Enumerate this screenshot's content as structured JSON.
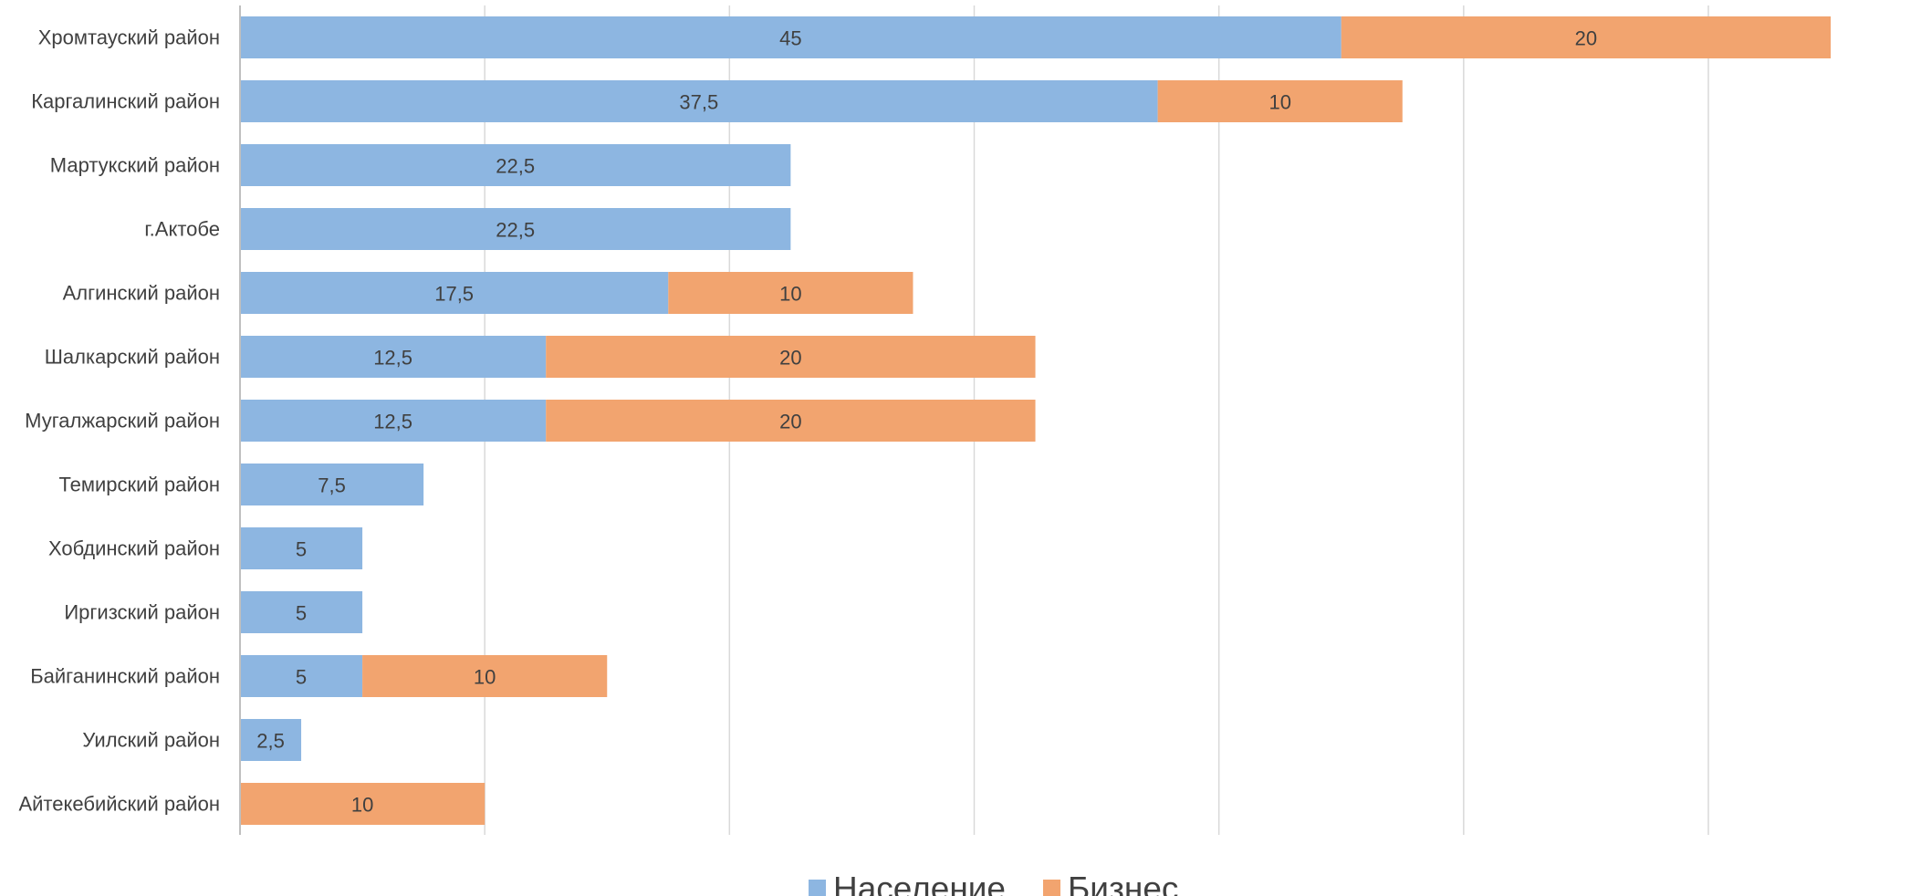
{
  "chart_data": {
    "type": "bar",
    "orientation": "horizontal",
    "stacked": true,
    "categories": [
      "Хромтауский район",
      "Каргалинский район",
      "Мартукский район",
      "г.Актобе",
      "Алгинский район",
      "Шалкарский район",
      "Мугалжарский район",
      "Темирский район",
      "Хобдинский район",
      "Иргизский район",
      "Байганинский район",
      "Уилский район",
      "Айтекебийский район"
    ],
    "series": [
      {
        "name": "Население",
        "color": "#8DB6E1",
        "values": [
          45,
          37.5,
          22.5,
          22.5,
          17.5,
          12.5,
          12.5,
          7.5,
          5,
          5,
          5,
          2.5,
          0
        ],
        "labels": [
          "45",
          "37,5",
          "22,5",
          "22,5",
          "17,5",
          "12,5",
          "12,5",
          "7,5",
          "5",
          "5",
          "5",
          "2,5",
          ""
        ]
      },
      {
        "name": "Бизнес",
        "color": "#F2A46F",
        "values": [
          20,
          10,
          0,
          0,
          10,
          20,
          20,
          0,
          0,
          0,
          10,
          0,
          10
        ],
        "labels": [
          "20",
          "10",
          "",
          "",
          "10",
          "20",
          "20",
          "",
          "",
          "",
          "10",
          "",
          "10"
        ]
      }
    ],
    "xlim": [
      0,
      70
    ],
    "x_gridlines": [
      0,
      10,
      20,
      30,
      40,
      50,
      60
    ],
    "grid": true,
    "x_tick_labels_visible": false,
    "legend": "bottom"
  }
}
